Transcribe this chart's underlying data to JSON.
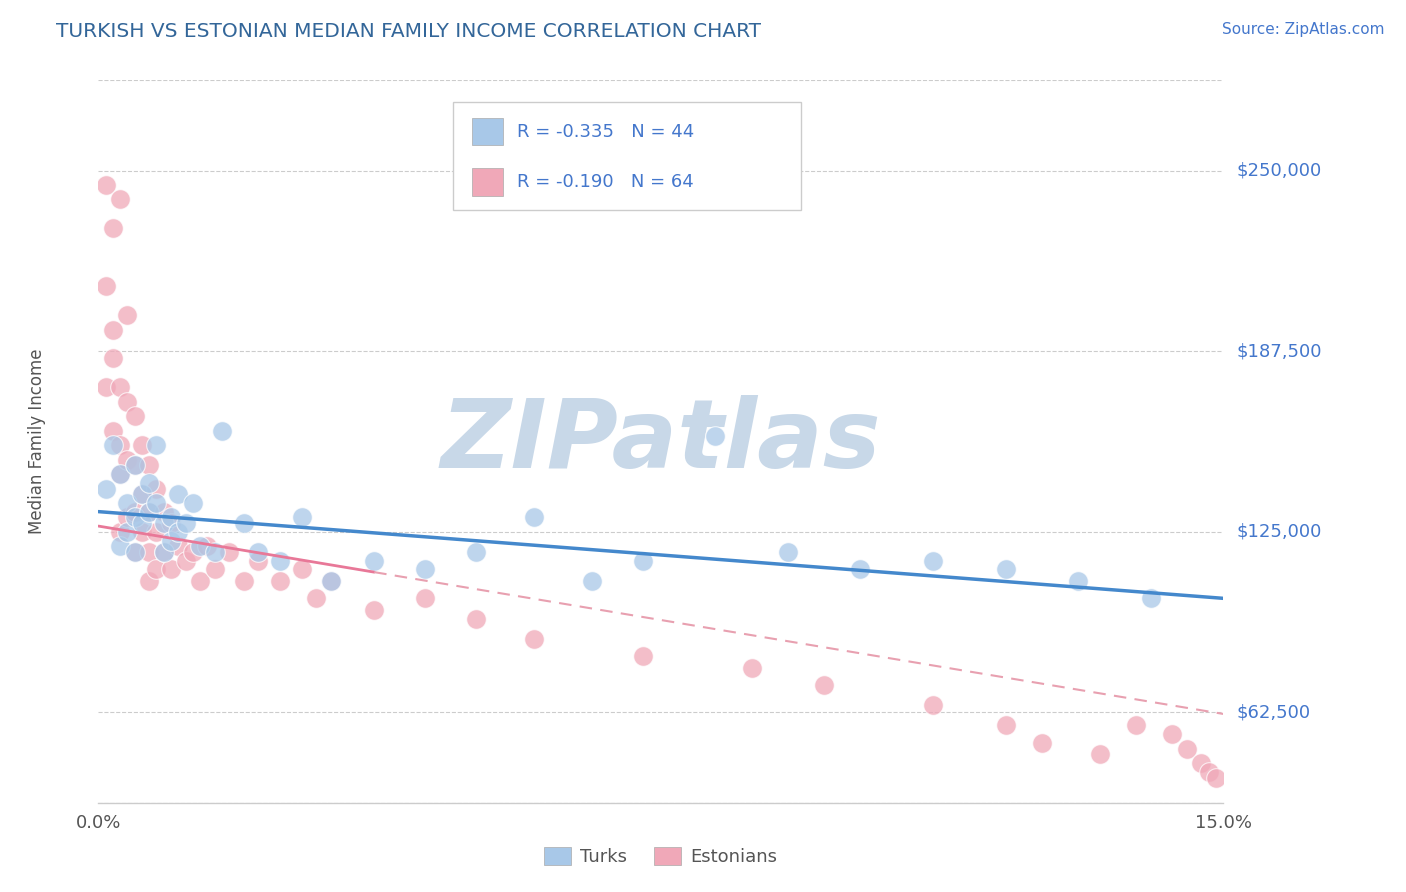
{
  "title": "TURKISH VS ESTONIAN MEDIAN FAMILY INCOME CORRELATION CHART",
  "source_text": "Source: ZipAtlas.com",
  "ylabel": "Median Family Income",
  "xlim": [
    0.0,
    0.155
  ],
  "ylim": [
    31250,
    281250
  ],
  "yticks": [
    62500,
    125000,
    187500,
    250000
  ],
  "ytick_labels": [
    "$62,500",
    "$125,000",
    "$187,500",
    "$250,000"
  ],
  "xticks": [
    0.0,
    0.155
  ],
  "xtick_labels": [
    "0.0%",
    "15.0%"
  ],
  "background_color": "#ffffff",
  "grid_color": "#cccccc",
  "watermark_text": "ZIPatlas",
  "watermark_color": "#c8d8e8",
  "legend_turks_r": "-0.335",
  "legend_turks_n": "44",
  "legend_estonians_r": "-0.190",
  "legend_estonians_n": "64",
  "turk_color": "#a8c8e8",
  "estonian_color": "#f0a8b8",
  "turk_line_color": "#4488cc",
  "estonian_line_solid_color": "#e87898",
  "estonian_line_dashed_color": "#e8a0b0",
  "label_color": "#4477cc",
  "title_color": "#336699",
  "turks_scatter_x": [
    0.001,
    0.002,
    0.003,
    0.003,
    0.004,
    0.004,
    0.005,
    0.005,
    0.005,
    0.006,
    0.006,
    0.007,
    0.007,
    0.008,
    0.008,
    0.009,
    0.009,
    0.01,
    0.01,
    0.011,
    0.011,
    0.012,
    0.013,
    0.014,
    0.016,
    0.017,
    0.02,
    0.022,
    0.025,
    0.028,
    0.032,
    0.038,
    0.045,
    0.052,
    0.06,
    0.068,
    0.075,
    0.085,
    0.095,
    0.105,
    0.115,
    0.125,
    0.135,
    0.145
  ],
  "turks_scatter_y": [
    140000,
    155000,
    120000,
    145000,
    135000,
    125000,
    148000,
    130000,
    118000,
    138000,
    128000,
    142000,
    132000,
    135000,
    155000,
    128000,
    118000,
    130000,
    122000,
    138000,
    125000,
    128000,
    135000,
    120000,
    118000,
    160000,
    128000,
    118000,
    115000,
    130000,
    108000,
    115000,
    112000,
    118000,
    130000,
    108000,
    115000,
    158000,
    118000,
    112000,
    115000,
    112000,
    108000,
    102000
  ],
  "estonians_scatter_x": [
    0.001,
    0.001,
    0.001,
    0.002,
    0.002,
    0.002,
    0.002,
    0.003,
    0.003,
    0.003,
    0.003,
    0.003,
    0.004,
    0.004,
    0.004,
    0.004,
    0.005,
    0.005,
    0.005,
    0.005,
    0.006,
    0.006,
    0.006,
    0.007,
    0.007,
    0.007,
    0.007,
    0.008,
    0.008,
    0.008,
    0.009,
    0.009,
    0.01,
    0.01,
    0.011,
    0.012,
    0.013,
    0.014,
    0.015,
    0.016,
    0.018,
    0.02,
    0.022,
    0.025,
    0.028,
    0.03,
    0.032,
    0.038,
    0.045,
    0.052,
    0.06,
    0.075,
    0.09,
    0.1,
    0.115,
    0.125,
    0.13,
    0.138,
    0.143,
    0.148,
    0.15,
    0.152,
    0.153,
    0.154
  ],
  "estonians_scatter_y": [
    245000,
    210000,
    175000,
    230000,
    195000,
    185000,
    160000,
    240000,
    175000,
    155000,
    145000,
    125000,
    200000,
    170000,
    150000,
    130000,
    165000,
    148000,
    132000,
    118000,
    155000,
    138000,
    125000,
    148000,
    132000,
    118000,
    108000,
    140000,
    125000,
    112000,
    132000,
    118000,
    128000,
    112000,
    120000,
    115000,
    118000,
    108000,
    120000,
    112000,
    118000,
    108000,
    115000,
    108000,
    112000,
    102000,
    108000,
    98000,
    102000,
    95000,
    88000,
    82000,
    78000,
    72000,
    65000,
    58000,
    52000,
    48000,
    58000,
    55000,
    50000,
    45000,
    42000,
    40000
  ]
}
